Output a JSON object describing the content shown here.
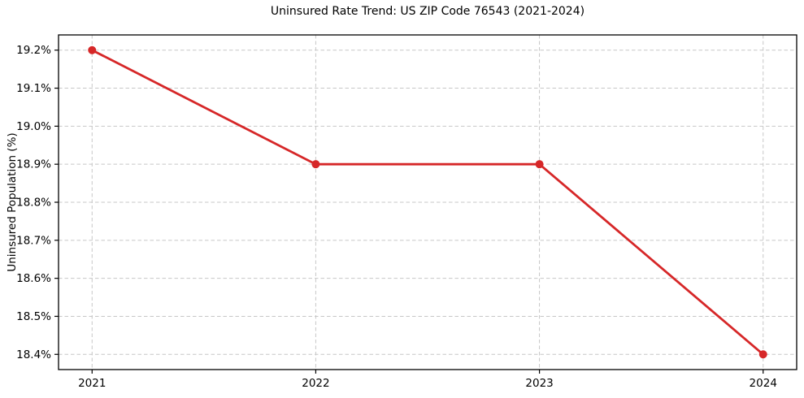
{
  "figure": {
    "background": "#ffffff"
  },
  "chart_data": {
    "type": "line",
    "title": "Uninsured Rate Trend: US ZIP Code 76543 (2021-2024)",
    "xlabel": "",
    "ylabel": "Uninsured Population (%)",
    "x": [
      2021,
      2022,
      2023,
      2024
    ],
    "values": [
      19.2,
      18.9,
      18.9,
      18.4
    ],
    "xticks": [
      {
        "v": 2021,
        "label": "2021"
      },
      {
        "v": 2022,
        "label": "2022"
      },
      {
        "v": 2023,
        "label": "2023"
      },
      {
        "v": 2024,
        "label": "2024"
      }
    ],
    "yticks": [
      {
        "v": 18.4,
        "label": "18.4%"
      },
      {
        "v": 18.5,
        "label": "18.5%"
      },
      {
        "v": 18.6,
        "label": "18.6%"
      },
      {
        "v": 18.7,
        "label": "18.7%"
      },
      {
        "v": 18.8,
        "label": "18.8%"
      },
      {
        "v": 18.9,
        "label": "18.9%"
      },
      {
        "v": 19.0,
        "label": "19.0%"
      },
      {
        "v": 19.1,
        "label": "19.1%"
      },
      {
        "v": 19.2,
        "label": "19.2%"
      }
    ],
    "xlim": [
      2020.85,
      2024.15
    ],
    "ylim": [
      18.36,
      19.24
    ],
    "grid": true,
    "grid_style": "dashed",
    "legend": "none",
    "line_color": "#d62728",
    "marker": "circle",
    "marker_size": 5,
    "line_width": 2.8,
    "grid_color": "#c7c7c7",
    "axis_color": "#000000",
    "tick_label_color": "#000000"
  }
}
